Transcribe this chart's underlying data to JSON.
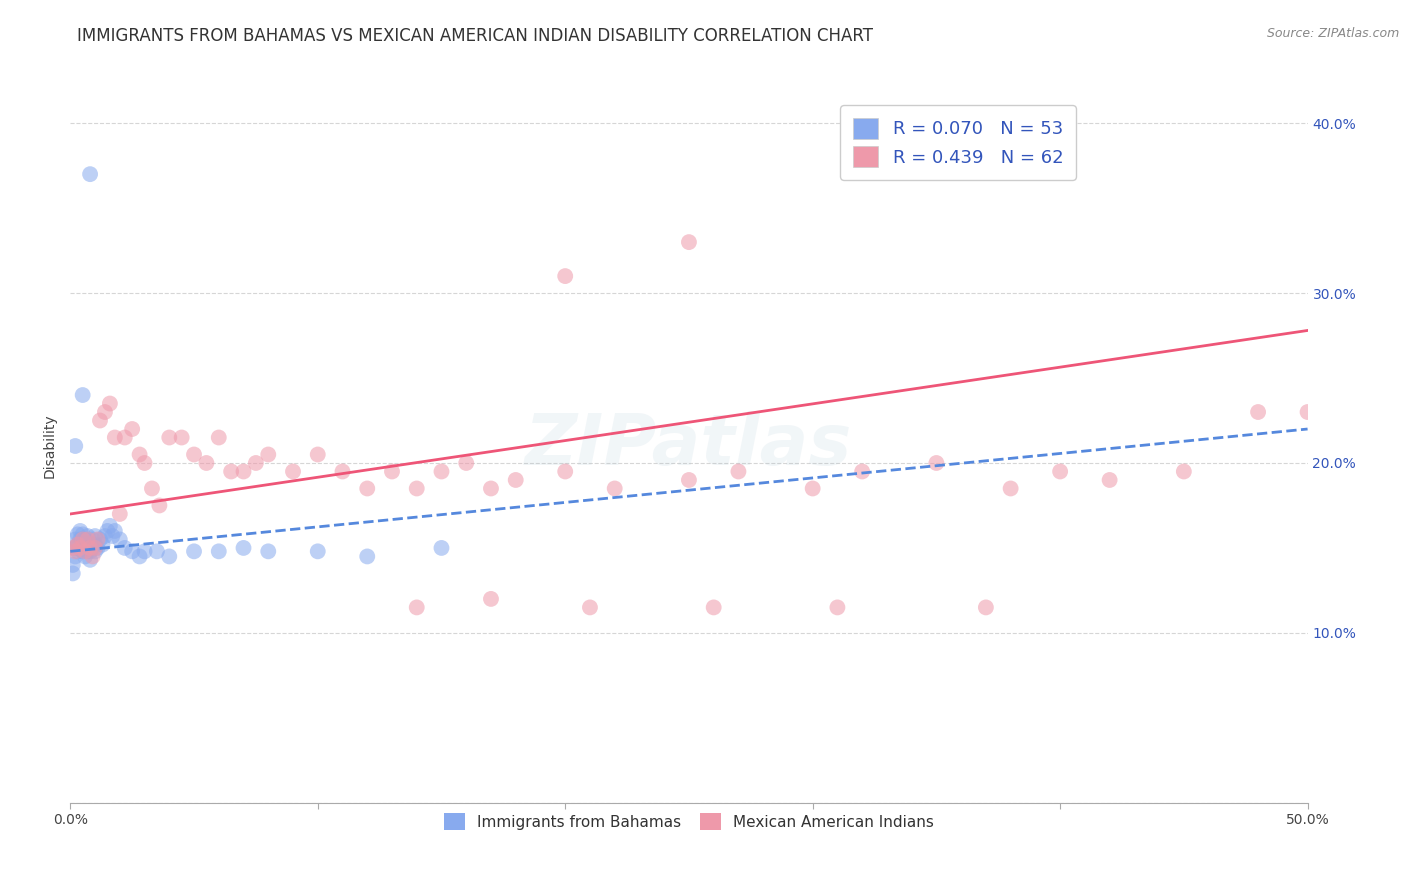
{
  "title": "IMMIGRANTS FROM BAHAMAS VS MEXICAN AMERICAN INDIAN DISABILITY CORRELATION CHART",
  "source": "Source: ZIPAtlas.com",
  "ylabel": "Disability",
  "watermark": "ZIPatlas",
  "xlim": [
    0.0,
    0.5
  ],
  "ylim": [
    0.0,
    0.42
  ],
  "x_ticks": [
    0.0,
    0.1,
    0.2,
    0.3,
    0.4,
    0.5
  ],
  "x_tick_labels_bottom": [
    "0.0%",
    "",
    "",
    "",
    "",
    "50.0%"
  ],
  "y_ticks": [
    0.0,
    0.1,
    0.2,
    0.3,
    0.4
  ],
  "y_tick_labels_right": [
    "",
    "10.0%",
    "20.0%",
    "30.0%",
    "40.0%"
  ],
  "legend_entries": [
    {
      "label": "Immigrants from Bahamas",
      "color": "#a8c8f8",
      "R": 0.07,
      "N": 53
    },
    {
      "label": "Mexican American Indians",
      "color": "#f8b8c8",
      "R": 0.439,
      "N": 62
    }
  ],
  "blue_scatter_x": [
    0.001,
    0.001,
    0.002,
    0.002,
    0.002,
    0.003,
    0.003,
    0.003,
    0.004,
    0.004,
    0.004,
    0.005,
    0.005,
    0.005,
    0.006,
    0.006,
    0.006,
    0.007,
    0.007,
    0.007,
    0.008,
    0.008,
    0.008,
    0.009,
    0.009,
    0.01,
    0.01,
    0.01,
    0.011,
    0.012,
    0.013,
    0.014,
    0.015,
    0.016,
    0.017,
    0.018,
    0.02,
    0.022,
    0.025,
    0.028,
    0.03,
    0.035,
    0.04,
    0.05,
    0.06,
    0.07,
    0.08,
    0.1,
    0.12,
    0.15,
    0.002,
    0.005,
    0.008
  ],
  "blue_scatter_y": [
    0.135,
    0.14,
    0.145,
    0.15,
    0.155,
    0.148,
    0.152,
    0.158,
    0.15,
    0.155,
    0.16,
    0.148,
    0.153,
    0.158,
    0.145,
    0.15,
    0.155,
    0.148,
    0.152,
    0.157,
    0.143,
    0.148,
    0.153,
    0.15,
    0.155,
    0.148,
    0.152,
    0.157,
    0.15,
    0.155,
    0.152,
    0.157,
    0.16,
    0.163,
    0.157,
    0.16,
    0.155,
    0.15,
    0.148,
    0.145,
    0.148,
    0.148,
    0.145,
    0.148,
    0.148,
    0.15,
    0.148,
    0.148,
    0.145,
    0.15,
    0.21,
    0.24,
    0.37
  ],
  "pink_scatter_x": [
    0.001,
    0.002,
    0.003,
    0.004,
    0.005,
    0.006,
    0.007,
    0.008,
    0.009,
    0.01,
    0.011,
    0.012,
    0.014,
    0.016,
    0.018,
    0.02,
    0.022,
    0.025,
    0.028,
    0.03,
    0.033,
    0.036,
    0.04,
    0.045,
    0.05,
    0.055,
    0.06,
    0.065,
    0.07,
    0.075,
    0.08,
    0.09,
    0.1,
    0.11,
    0.12,
    0.13,
    0.14,
    0.15,
    0.16,
    0.17,
    0.18,
    0.2,
    0.22,
    0.25,
    0.27,
    0.3,
    0.32,
    0.35,
    0.38,
    0.4,
    0.42,
    0.45,
    0.48,
    0.14,
    0.17,
    0.21,
    0.26,
    0.31,
    0.37,
    0.5,
    0.2,
    0.25
  ],
  "pink_scatter_y": [
    0.15,
    0.148,
    0.152,
    0.15,
    0.155,
    0.148,
    0.155,
    0.15,
    0.145,
    0.15,
    0.155,
    0.225,
    0.23,
    0.235,
    0.215,
    0.17,
    0.215,
    0.22,
    0.205,
    0.2,
    0.185,
    0.175,
    0.215,
    0.215,
    0.205,
    0.2,
    0.215,
    0.195,
    0.195,
    0.2,
    0.205,
    0.195,
    0.205,
    0.195,
    0.185,
    0.195,
    0.185,
    0.195,
    0.2,
    0.185,
    0.19,
    0.195,
    0.185,
    0.19,
    0.195,
    0.185,
    0.195,
    0.2,
    0.185,
    0.195,
    0.19,
    0.195,
    0.23,
    0.115,
    0.12,
    0.115,
    0.115,
    0.115,
    0.115,
    0.23,
    0.31,
    0.33
  ],
  "blue_line_x": [
    0.0,
    0.5
  ],
  "blue_line_y": [
    0.148,
    0.22
  ],
  "pink_line_x": [
    0.0,
    0.5
  ],
  "pink_line_y": [
    0.17,
    0.278
  ],
  "grid_color": "#cccccc",
  "bg_color": "#ffffff",
  "blue_line_color": "#5588dd",
  "pink_line_color": "#ee5577",
  "blue_scatter_color": "#88aaee",
  "pink_scatter_color": "#ee99aa",
  "title_fontsize": 12,
  "axis_label_fontsize": 10,
  "tick_fontsize": 10,
  "watermark_fontsize": 52,
  "watermark_alpha": 0.13,
  "watermark_color": "#99bbcc"
}
